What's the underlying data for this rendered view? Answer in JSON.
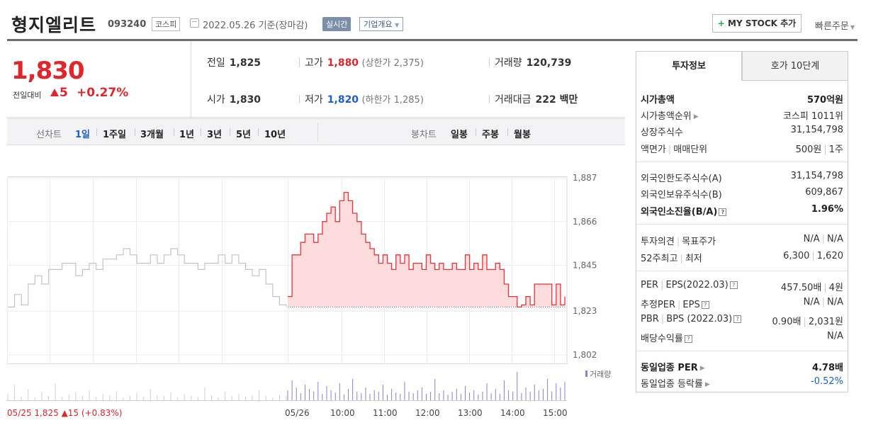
{
  "header": {
    "name": "형지엘리트",
    "code": "093240",
    "market": "코스피",
    "date": "2022.05.26 기준(장마감)",
    "realtime": "실시간",
    "company": "기업개요",
    "mystock": "MY STOCK 추가",
    "quick": "빠른주문"
  },
  "price": {
    "current": "1,830",
    "diff_label": "전일대비",
    "diff": "5",
    "pct": "+0.27%",
    "prev_label": "전일",
    "prev": "1,825",
    "high_label": "고가",
    "high": "1,880",
    "upper": "(상한가 2,375)",
    "vol_label": "거래량",
    "vol": "120,739",
    "open_label": "시가",
    "open": "1,830",
    "low_label": "저가",
    "low": "1,820",
    "lower": "(하한가 1,285)",
    "amt_label": "거래대금",
    "amt": "222 백만"
  },
  "period": {
    "line_label": "선차트",
    "line_items": [
      "1일",
      "1주일",
      "3개월",
      "1년",
      "3년",
      "5년",
      "10년"
    ],
    "candle_label": "봉차트",
    "candle_items": [
      "일봉",
      "주봉",
      "월봉"
    ]
  },
  "chart_data": {
    "type": "line",
    "yticks": [
      "1,887",
      "1,866",
      "1,845",
      "1,823",
      "1,802"
    ],
    "ylim": [
      1802,
      1887
    ],
    "xticks": [
      "05/25",
      "05/26",
      "10:00",
      "11:00",
      "12:00",
      "13:00",
      "14:00",
      "15:00"
    ],
    "prev_info": "05/25 1,825 ▲15 (+0.83%)",
    "volume_label": "거래량",
    "baseline": 1825,
    "prev_day": [
      1825,
      1831,
      1826,
      1836,
      1840,
      1836,
      1843,
      1843,
      1846,
      1846,
      1840,
      1843,
      1846,
      1843,
      1848,
      1848,
      1850,
      1853,
      1850,
      1846,
      1846,
      1850,
      1846,
      1850,
      1853,
      1850,
      1846,
      1846,
      1843,
      1846,
      1846,
      1850,
      1846,
      1850,
      1846,
      1843,
      1840,
      1843,
      1836,
      1830,
      1826,
      1825
    ],
    "today": [
      1830,
      1850,
      1850,
      1856,
      1860,
      1860,
      1856,
      1860,
      1866,
      1870,
      1873,
      1866,
      1876,
      1880,
      1876,
      1870,
      1866,
      1860,
      1856,
      1853,
      1850,
      1846,
      1850,
      1846,
      1843,
      1850,
      1846,
      1850,
      1843,
      1846,
      1846,
      1843,
      1850,
      1846,
      1843,
      1846,
      1843,
      1843,
      1846,
      1843,
      1843,
      1850,
      1843,
      1846,
      1843,
      1850,
      1843,
      1843,
      1846,
      1843,
      1836,
      1830,
      1830,
      1825,
      1826,
      1830,
      1826,
      1836,
      1836,
      1836,
      1836,
      1826,
      1836,
      1826,
      1830
    ],
    "prev_volume": [
      9,
      22,
      5,
      16,
      4,
      12,
      6,
      24,
      5,
      8,
      11,
      6,
      14,
      5,
      9,
      7,
      12,
      4,
      6,
      10,
      5,
      16,
      7,
      6,
      11,
      4,
      9,
      6,
      5,
      18,
      7,
      4,
      12,
      6,
      9,
      5,
      7,
      14,
      6,
      4,
      8,
      6
    ],
    "today_volume": [
      14,
      28,
      18,
      10,
      22,
      16,
      12,
      26,
      9,
      20,
      14,
      11,
      24,
      8,
      16,
      30,
      12,
      10,
      18,
      9,
      14,
      12,
      22,
      8,
      16,
      11,
      9,
      26,
      12,
      10,
      14,
      18,
      9,
      12,
      30,
      10,
      14,
      8,
      12,
      16,
      9,
      20,
      11,
      14,
      8,
      12,
      24,
      10,
      16,
      9,
      28,
      14,
      12,
      40,
      10,
      18,
      12,
      22,
      14,
      16,
      30,
      12,
      24,
      18,
      26
    ]
  },
  "tabs": {
    "invest": "투자정보",
    "hoga": "호가 10단계"
  },
  "info": {
    "mcap_label": "시가총액",
    "mcap": "570억원",
    "rank_label": "시가총액순위",
    "rank": "코스피 1011위",
    "shares_label": "상장주식수",
    "shares": "31,154,798",
    "par_label": "액면가",
    "unit_label": "매매단위",
    "par": "500원",
    "unit": "1주",
    "foreign_limit_label": "외국인한도주식수(A)",
    "foreign_limit": "31,154,798",
    "foreign_hold_label": "외국인보유주식수(B)",
    "foreign_hold": "609,867",
    "foreign_ratio_label": "외국인소진율(B/A)",
    "foreign_ratio": "1.96%",
    "opinion_label": "투자의견",
    "target_label": "목표주가",
    "opinion": "N/A",
    "target": "N/A",
    "w52h_label": "52주최고",
    "w52l_label": "최저",
    "w52h": "6,300",
    "w52l": "1,620",
    "per_label": "PER",
    "eps_label": "EPS(2022.03)",
    "per": "457.50배",
    "eps": "4원",
    "eper_label": "추정PER",
    "eeps_label": "EPS",
    "eper": "N/A",
    "eeps": "N/A",
    "pbr_label": "PBR",
    "bps_label": "BPS (2022.03)",
    "pbr": "0.90배",
    "bps": "2,031원",
    "div_label": "배당수익률",
    "div": "N/A",
    "ind_per_label": "동일업종 PER",
    "ind_per": "4.78배",
    "ind_rate_label": "동일업종 등락률",
    "ind_rate": "-0.52%"
  }
}
